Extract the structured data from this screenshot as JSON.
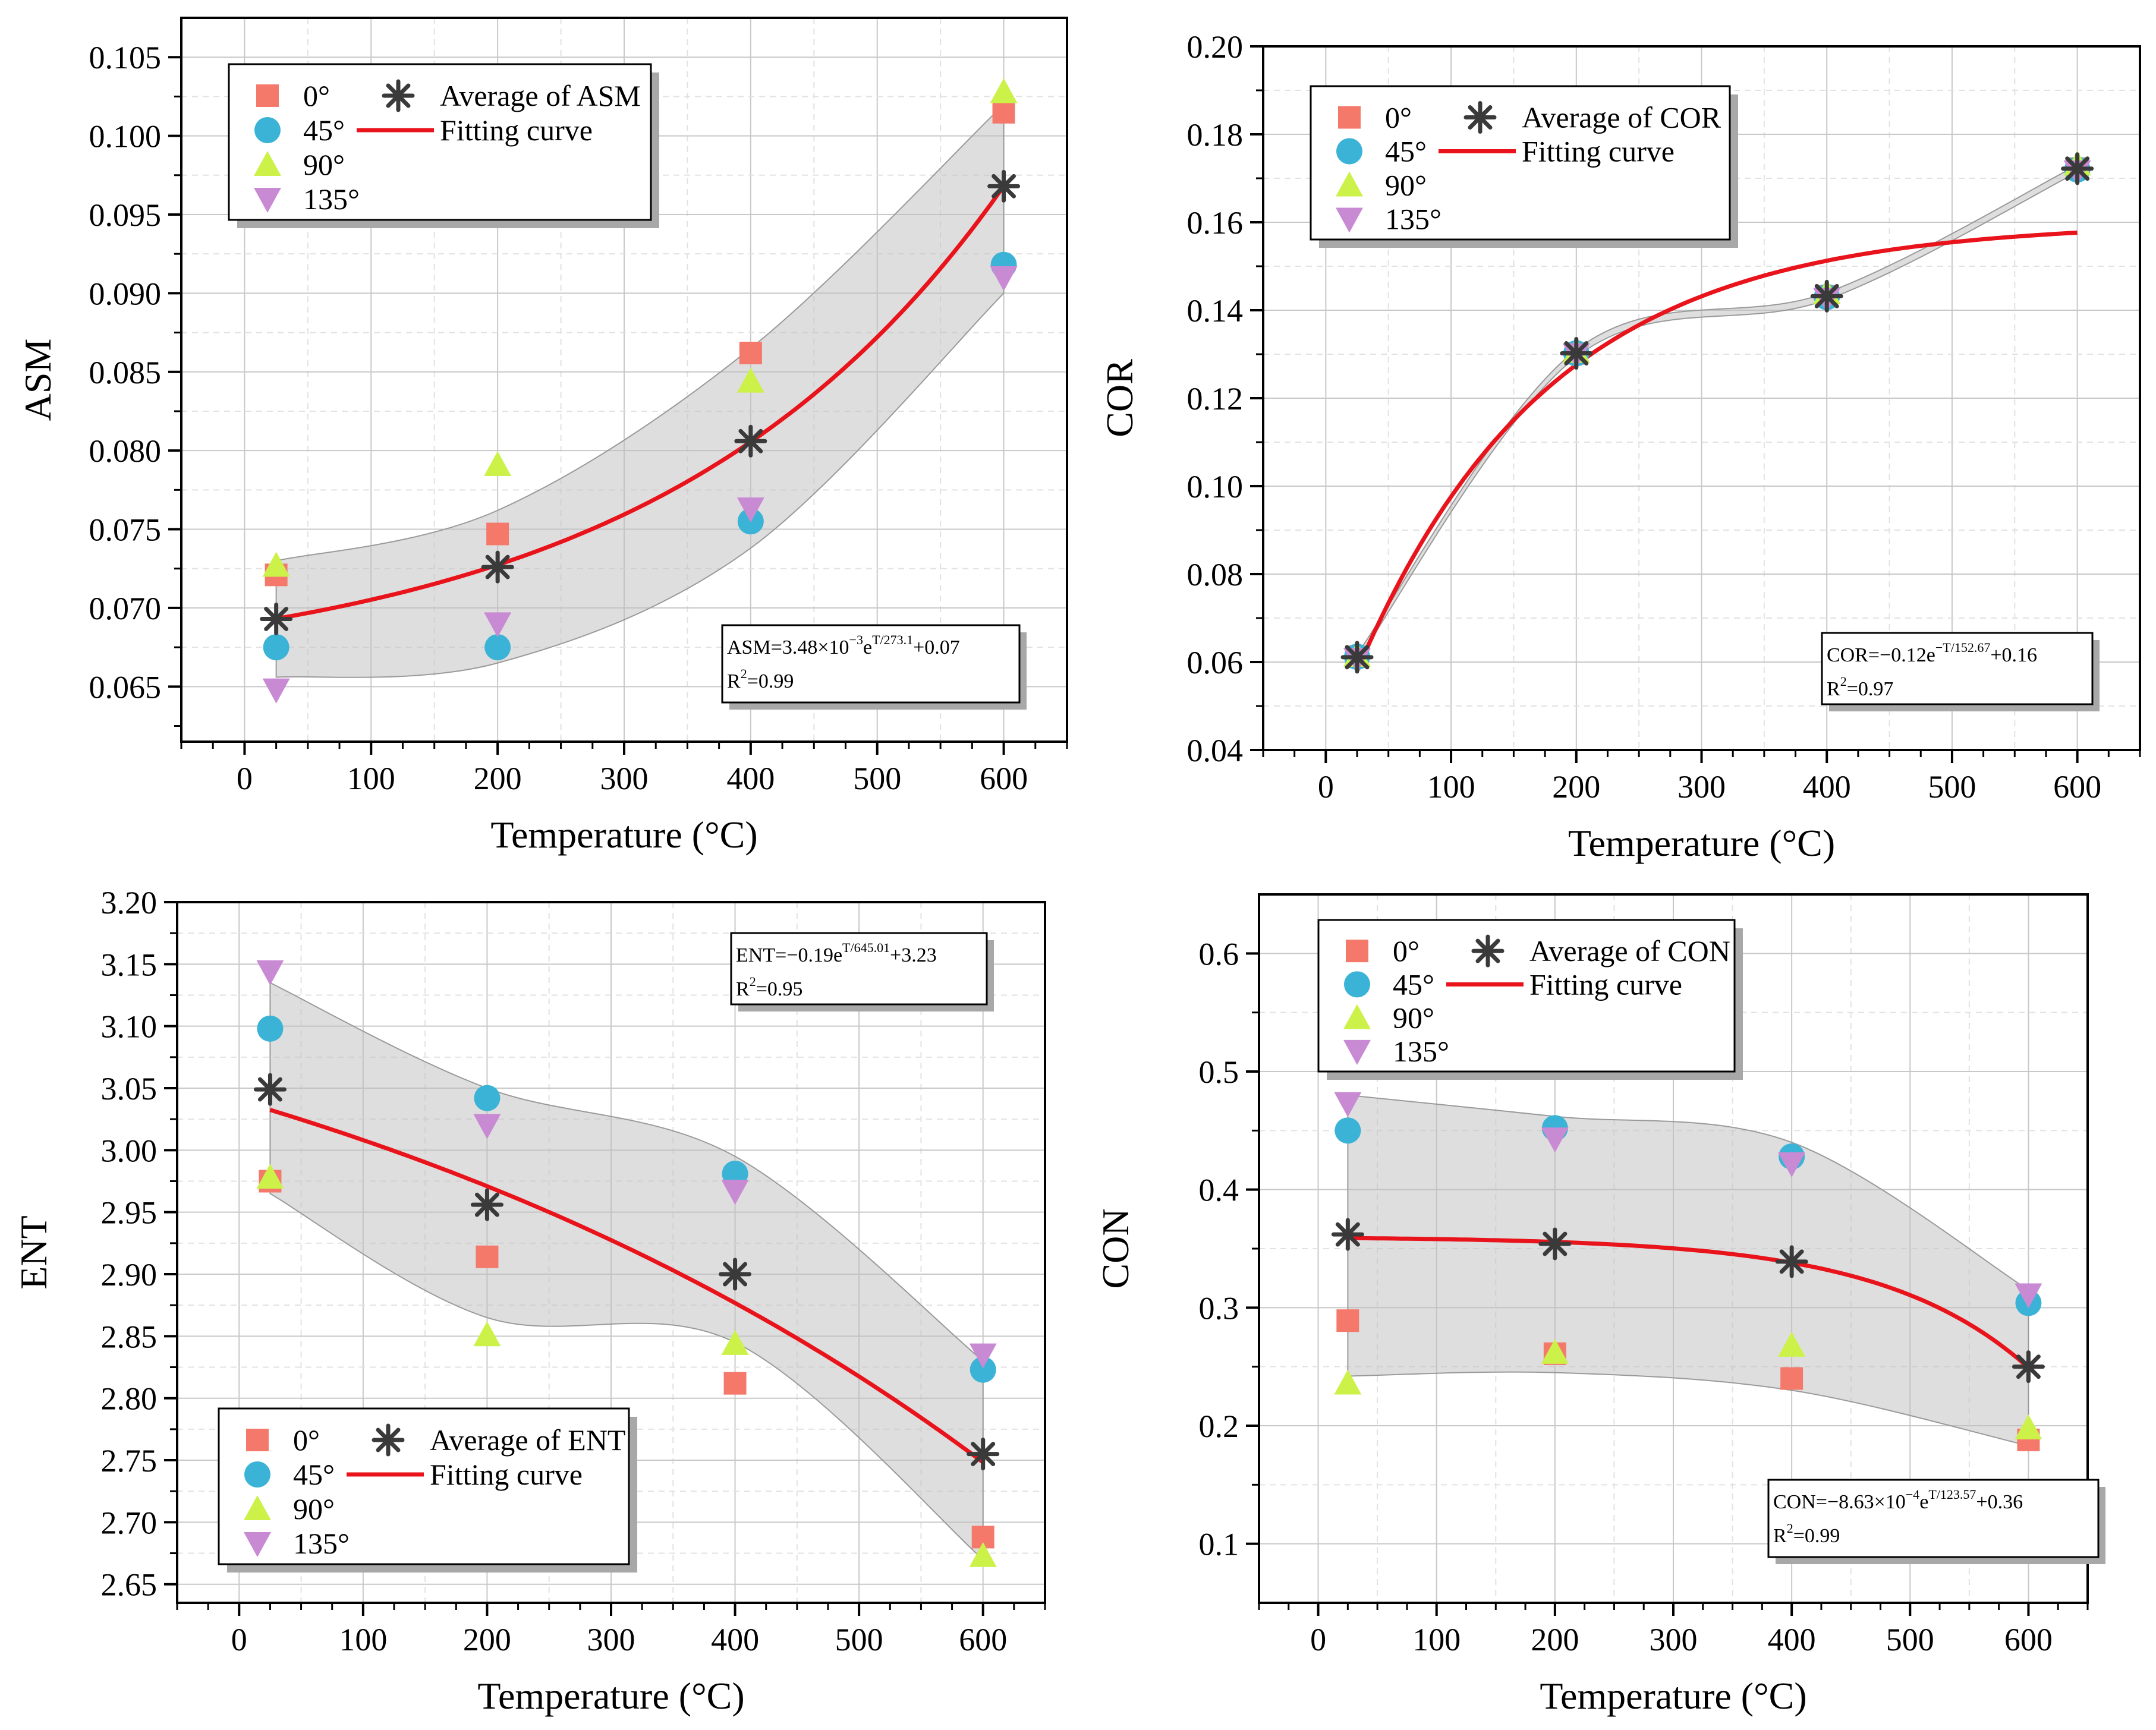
{
  "chart_data": [
    {
      "id": "asm",
      "type": "scatter",
      "xlabel": "Temperature (°C)",
      "ylabel": "ASM",
      "xlim": [
        -50,
        650
      ],
      "ylim": [
        0.0615,
        0.1075
      ],
      "xticks": [
        0,
        100,
        200,
        300,
        400,
        500,
        600
      ],
      "yticks": [
        0.065,
        0.07,
        0.075,
        0.08,
        0.085,
        0.09,
        0.095,
        0.1,
        0.105
      ],
      "ytick_labels": [
        "0.065",
        "0.070",
        "0.075",
        "0.080",
        "0.085",
        "0.090",
        "0.095",
        "0.100",
        "0.105"
      ],
      "x": [
        25,
        200,
        400,
        600
      ],
      "series": [
        {
          "name": "0°",
          "marker": "square",
          "color": "#f4796b",
          "values": [
            0.0721,
            0.0747,
            0.0862,
            0.1015
          ]
        },
        {
          "name": "45°",
          "marker": "circle",
          "color": "#3ab3d6",
          "values": [
            0.0675,
            0.0675,
            0.0755,
            0.0918
          ]
        },
        {
          "name": "90°",
          "marker": "triangle-up",
          "color": "#ccf24a",
          "values": [
            0.0727,
            0.0791,
            0.0844,
            0.1028
          ]
        },
        {
          "name": "135°",
          "marker": "triangle-down",
          "color": "#c98ad4",
          "values": [
            0.0648,
            0.069,
            0.0763,
            0.091
          ]
        },
        {
          "name": "Average of ASM",
          "marker": "asterisk",
          "color": "#3a3a3a",
          "values": [
            0.0693,
            0.0726,
            0.0806,
            0.0968
          ]
        }
      ],
      "fit": {
        "name": "Fitting curve",
        "color": "#e8131b",
        "A": 0.00348,
        "tau": 273.1,
        "C": 0.0655,
        "x_from": 25,
        "x_to": 600
      },
      "band": {
        "upper": [
          0.073,
          0.0762,
          0.0865,
          0.102
        ],
        "lower": [
          0.0656,
          0.0665,
          0.0738,
          0.09
        ]
      },
      "legend": {
        "items": [
          "0°",
          "45°",
          "90°",
          "135°"
        ],
        "avg_label": "Average of ASM",
        "fit_label": "Fitting curve",
        "position": "top-left"
      },
      "equation": {
        "parts": [
          {
            "t": "ASM=3.48×10"
          },
          {
            "t": "−3",
            "sup": true
          },
          {
            "t": "e"
          },
          {
            "t": "T/273.1",
            "sup": true
          },
          {
            "t": "+0.07"
          }
        ],
        "r2": [
          {
            "t": "R"
          },
          {
            "t": "2",
            "sup": true
          },
          {
            "t": "=0.99"
          }
        ],
        "position": "bottom-right"
      }
    },
    {
      "id": "cor",
      "type": "scatter",
      "xlabel": "Temperature (°C)",
      "ylabel": "COR",
      "xlim": [
        -50,
        650
      ],
      "ylim": [
        0.04,
        0.2
      ],
      "xticks": [
        0,
        100,
        200,
        300,
        400,
        500,
        600
      ],
      "yticks": [
        0.04,
        0.06,
        0.08,
        0.1,
        0.12,
        0.14,
        0.16,
        0.18,
        0.2
      ],
      "ytick_labels": [
        "0.04",
        "0.06",
        "0.08",
        "0.10",
        "0.12",
        "0.14",
        "0.16",
        "0.18",
        "0.20"
      ],
      "x": [
        25,
        200,
        400,
        600
      ],
      "series": [
        {
          "name": "0°",
          "marker": "square",
          "color": "#f4796b",
          "values": [
            0.0612,
            0.1302,
            0.1432,
            0.1722
          ]
        },
        {
          "name": "45°",
          "marker": "circle",
          "color": "#3ab3d6",
          "values": [
            0.0612,
            0.1302,
            0.143,
            0.172
          ]
        },
        {
          "name": "90°",
          "marker": "triangle-up",
          "color": "#ccf24a",
          "values": [
            0.0615,
            0.1306,
            0.144,
            0.1732
          ]
        },
        {
          "name": "135°",
          "marker": "triangle-down",
          "color": "#c98ad4",
          "values": [
            0.0606,
            0.1299,
            0.1425,
            0.1715
          ]
        },
        {
          "name": "Average of COR",
          "marker": "asterisk",
          "color": "#3a3a3a",
          "values": [
            0.0611,
            0.1302,
            0.1432,
            0.1722
          ]
        }
      ],
      "fit": {
        "name": "Fitting curve",
        "color": "#e8131b",
        "A": -0.12,
        "tau": 152.67,
        "C": 0.16,
        "x_from": 25,
        "x_to": 600,
        "shift": 25
      },
      "band": {
        "upper": [
          0.0618,
          0.131,
          0.144,
          0.173
        ],
        "lower": [
          0.0604,
          0.1294,
          0.1424,
          0.1714
        ]
      },
      "legend": {
        "items": [
          "0°",
          "45°",
          "90°",
          "135°"
        ],
        "avg_label": "Average of COR",
        "fit_label": "Fitting curve",
        "position": "top-left"
      },
      "equation": {
        "parts": [
          {
            "t": "COR=−0.12e"
          },
          {
            "t": "−T/152.67",
            "sup": true
          },
          {
            "t": "+0.16"
          }
        ],
        "r2": [
          {
            "t": "R"
          },
          {
            "t": "2",
            "sup": true
          },
          {
            "t": "=0.97"
          }
        ],
        "position": "bottom-right"
      }
    },
    {
      "id": "ent",
      "type": "scatter",
      "xlabel": "Temperature (°C)",
      "ylabel": "ENT",
      "xlim": [
        -50,
        650
      ],
      "ylim": [
        2.635,
        3.2
      ],
      "xticks": [
        0,
        100,
        200,
        300,
        400,
        500,
        600
      ],
      "yticks": [
        2.65,
        2.7,
        2.75,
        2.8,
        2.85,
        2.9,
        2.95,
        3.0,
        3.05,
        3.1,
        3.15,
        3.2
      ],
      "ytick_labels": [
        "2.65",
        "2.70",
        "2.75",
        "2.80",
        "2.85",
        "2.90",
        "2.95",
        "3.00",
        "3.05",
        "3.10",
        "3.15",
        "3.20"
      ],
      "x": [
        25,
        200,
        400,
        600
      ],
      "series": [
        {
          "name": "0°",
          "marker": "square",
          "color": "#f4796b",
          "values": [
            2.975,
            2.914,
            2.812,
            2.688
          ]
        },
        {
          "name": "45°",
          "marker": "circle",
          "color": "#3ab3d6",
          "values": [
            3.098,
            3.042,
            2.981,
            2.823
          ]
        },
        {
          "name": "90°",
          "marker": "triangle-up",
          "color": "#ccf24a",
          "values": [
            2.978,
            2.851,
            2.844,
            2.673
          ]
        },
        {
          "name": "135°",
          "marker": "triangle-down",
          "color": "#c98ad4",
          "values": [
            3.144,
            3.02,
            2.967,
            2.835
          ]
        },
        {
          "name": "Average of ENT",
          "marker": "asterisk",
          "color": "#3a3a3a",
          "values": [
            3.049,
            2.956,
            2.9,
            2.755
          ]
        }
      ],
      "fit": {
        "name": "Fitting curve",
        "color": "#e8131b",
        "A": -0.19,
        "tau": 645.01,
        "C": 3.23,
        "x_from": 25,
        "x_to": 600
      },
      "band": {
        "upper": [
          3.135,
          3.05,
          2.995,
          2.83
        ],
        "lower": [
          2.965,
          2.865,
          2.845,
          2.67
        ]
      },
      "legend": {
        "items": [
          "0°",
          "45°",
          "90°",
          "135°"
        ],
        "avg_label": "Average of ENT",
        "fit_label": "Fitting curve",
        "position": "bottom-left"
      },
      "equation": {
        "parts": [
          {
            "t": "ENT=−0.19e"
          },
          {
            "t": "T/645.01",
            "sup": true
          },
          {
            "t": "+3.23"
          }
        ],
        "r2": [
          {
            "t": "R"
          },
          {
            "t": "2",
            "sup": true
          },
          {
            "t": "=0.95"
          }
        ],
        "position": "top-right"
      }
    },
    {
      "id": "con",
      "type": "scatter",
      "xlabel": "Temperature (°C)",
      "ylabel": "CON",
      "xlim": [
        -50,
        650
      ],
      "ylim": [
        0.05,
        0.65
      ],
      "xticks": [
        0,
        100,
        200,
        300,
        400,
        500,
        600
      ],
      "yticks": [
        0.1,
        0.2,
        0.3,
        0.4,
        0.5,
        0.6
      ],
      "ytick_labels": [
        "0.1",
        "0.2",
        "0.3",
        "0.4",
        "0.5",
        "0.6"
      ],
      "x": [
        25,
        200,
        400,
        600
      ],
      "series": [
        {
          "name": "0°",
          "marker": "square",
          "color": "#f4796b",
          "values": [
            0.289,
            0.261,
            0.24,
            0.188
          ]
        },
        {
          "name": "45°",
          "marker": "circle",
          "color": "#3ab3d6",
          "values": [
            0.45,
            0.452,
            0.428,
            0.304
          ]
        },
        {
          "name": "90°",
          "marker": "triangle-up",
          "color": "#ccf24a",
          "values": [
            0.236,
            0.262,
            0.268,
            0.198
          ]
        },
        {
          "name": "135°",
          "marker": "triangle-down",
          "color": "#c98ad4",
          "values": [
            0.473,
            0.443,
            0.422,
            0.311
          ]
        },
        {
          "name": "Average of CON",
          "marker": "asterisk",
          "color": "#3a3a3a",
          "values": [
            0.362,
            0.354,
            0.339,
            0.25
          ]
        }
      ],
      "fit": {
        "name": "Fitting curve",
        "color": "#e8131b",
        "A": -0.000863,
        "tau": 123.57,
        "C": 0.36,
        "x_from": 25,
        "x_to": 600
      },
      "band": {
        "upper": [
          0.48,
          0.462,
          0.44,
          0.315
        ],
        "lower": [
          0.242,
          0.245,
          0.23,
          0.183
        ]
      },
      "legend": {
        "items": [
          "0°",
          "45°",
          "90°",
          "135°"
        ],
        "avg_label": "Average of CON",
        "fit_label": "Fitting curve",
        "position": "top-left"
      },
      "equation": {
        "parts": [
          {
            "t": "CON=−8.63×10"
          },
          {
            "t": "−4",
            "sup": true
          },
          {
            "t": "e"
          },
          {
            "t": "T/123.57",
            "sup": true
          },
          {
            "t": "+0.36"
          }
        ],
        "r2": [
          {
            "t": "R"
          },
          {
            "t": "2",
            "sup": true
          },
          {
            "t": "=0.99"
          }
        ],
        "position": "bottom-right"
      }
    }
  ]
}
